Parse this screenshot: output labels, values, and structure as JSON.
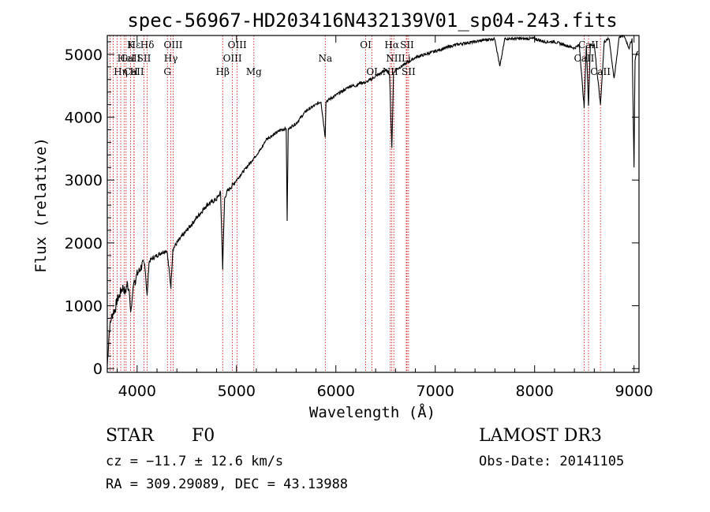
{
  "chart_data": {
    "type": "line",
    "title": "spec-56967-HD203416N432139V01_sp04-243.fits",
    "xlabel": "Wavelength (Å)",
    "ylabel": "Flux (relative)",
    "xlim": [
      3700,
      9050
    ],
    "ylim": [
      -60,
      5300
    ],
    "xticks": [
      4000,
      5000,
      6000,
      7000,
      8000,
      9000
    ],
    "yticks": [
      0,
      1000,
      2000,
      3000,
      4000,
      5000
    ],
    "series": [
      {
        "name": "flux",
        "x": [
          3700,
          3720,
          3740,
          3760,
          3780,
          3800,
          3820,
          3840,
          3860,
          3880,
          3900,
          3920,
          3935,
          3945,
          3960,
          3970,
          3980,
          4000,
          4020,
          4050,
          4080,
          4101,
          4120,
          4150,
          4200,
          4250,
          4300,
          4340,
          4360,
          4380,
          4400,
          4450,
          4500,
          4550,
          4600,
          4650,
          4700,
          4750,
          4800,
          4840,
          4861,
          4880,
          4900,
          4950,
          5000,
          5050,
          5100,
          5150,
          5200,
          5250,
          5300,
          5350,
          5400,
          5450,
          5500,
          5510,
          5520,
          5550,
          5600,
          5650,
          5700,
          5750,
          5800,
          5850,
          5893,
          5900,
          5950,
          6000,
          6050,
          6100,
          6150,
          6200,
          6250,
          6300,
          6350,
          6400,
          6450,
          6500,
          6540,
          6563,
          6580,
          6600,
          6650,
          6700,
          6750,
          6800,
          6900,
          7000,
          7100,
          7200,
          7300,
          7400,
          7500,
          7600,
          7650,
          7700,
          7750,
          7800,
          7900,
          8000,
          8100,
          8200,
          8300,
          8400,
          8450,
          8498,
          8520,
          8542,
          8560,
          8600,
          8662,
          8700,
          8750,
          8800,
          8850,
          8900,
          8950,
          8980,
          9000,
          9010,
          9020,
          9040
        ],
        "values": [
          50,
          600,
          800,
          900,
          950,
          1100,
          1150,
          1250,
          1300,
          1200,
          1350,
          1250,
          900,
          1000,
          1300,
          1400,
          1400,
          1500,
          1550,
          1650,
          1650,
          1150,
          1700,
          1750,
          1800,
          1850,
          1880,
          1300,
          1900,
          1950,
          2000,
          2100,
          2200,
          2300,
          2400,
          2500,
          2600,
          2650,
          2700,
          2800,
          1600,
          2700,
          2800,
          2900,
          3000,
          3100,
          3200,
          3300,
          3400,
          3500,
          3650,
          3700,
          3750,
          3800,
          3820,
          2350,
          3800,
          3850,
          3900,
          4000,
          4100,
          4150,
          4200,
          4250,
          3680,
          4250,
          4300,
          4350,
          4400,
          4450,
          4500,
          4500,
          4550,
          4550,
          4600,
          4650,
          4700,
          4750,
          4700,
          3500,
          4700,
          4750,
          4800,
          4850,
          4900,
          4950,
          5000,
          5050,
          5100,
          5150,
          5180,
          5200,
          5230,
          5250,
          4800,
          5250,
          5250,
          5250,
          5250,
          5250,
          5200,
          5200,
          5150,
          5100,
          5150,
          4150,
          5150,
          4200,
          5150,
          5150,
          4200,
          5200,
          5250,
          4600,
          5280,
          5300,
          5100,
          5250,
          3200,
          4900,
          5000,
          5050
        ]
      }
    ],
    "spectral_lines": [
      {
        "label": "Hε",
        "x": 3970,
        "row": 1
      },
      {
        "label": "CaII",
        "x": 3934,
        "row": 2
      },
      {
        "label": "K",
        "x": 3934,
        "row": 1
      },
      {
        "label": "Hδ",
        "x": 4102,
        "row": 1
      },
      {
        "label": "HeI",
        "x": 3889,
        "row": 2
      },
      {
        "label": "SII",
        "x": 4069,
        "row": 2
      },
      {
        "label": "CaII",
        "x": 3968,
        "row": 3
      },
      {
        "label": "Hη",
        "x": 3835,
        "row": 3
      },
      {
        "label": "H",
        "x": 3968,
        "row": 3
      },
      {
        "label": "OIII",
        "x": 4363,
        "row": 1
      },
      {
        "label": "Hγ",
        "x": 4340,
        "row": 2
      },
      {
        "label": "G",
        "x": 4305,
        "row": 3
      },
      {
        "label": "OIII",
        "x": 5007,
        "row": 1
      },
      {
        "label": "OIII",
        "x": 4959,
        "row": 2
      },
      {
        "label": "Hβ",
        "x": 4861,
        "row": 3
      },
      {
        "label": "Mg",
        "x": 5175,
        "row": 3
      },
      {
        "label": "Na",
        "x": 5893,
        "row": 2
      },
      {
        "label": "OI",
        "x": 6300,
        "row": 1
      },
      {
        "label": "OI",
        "x": 6364,
        "row": 3
      },
      {
        "label": "Hα",
        "x": 6563,
        "row": 1
      },
      {
        "label": "SII",
        "x": 6716,
        "row": 1
      },
      {
        "label": "NII",
        "x": 6583,
        "row": 2
      },
      {
        "label": "Li",
        "x": 6708,
        "row": 2
      },
      {
        "label": "NII",
        "x": 6548,
        "row": 3
      },
      {
        "label": "SII",
        "x": 6731,
        "row": 3
      },
      {
        "label": "CaII",
        "x": 8542,
        "row": 1
      },
      {
        "label": "CaII",
        "x": 8498,
        "row": 2
      },
      {
        "label": "CaII",
        "x": 8662,
        "row": 3
      }
    ],
    "line_marks_x": [
      3700,
      3727,
      3760,
      3798,
      3835,
      3869,
      3889,
      3934,
      3968,
      3970,
      4069,
      4102,
      4305,
      4340,
      4363,
      4861,
      4959,
      5007,
      5175,
      5893,
      6300,
      6364,
      6548,
      6563,
      6583,
      6708,
      6716,
      6731,
      8498,
      8542,
      8662
    ]
  },
  "info": {
    "object_type": "STAR",
    "subclass": "F0",
    "survey": "LAMOST DR3",
    "redshift_text": "cz = −11.7 ± 12.6 km/s",
    "obs_date_text": "Obs-Date: 20141105",
    "coords_text": "RA = 309.29089, DEC =  43.13988"
  },
  "colors": {
    "spectrum": "#000000",
    "line_marker": "#cc0000",
    "axes": "#000000",
    "background": "#ffffff"
  }
}
